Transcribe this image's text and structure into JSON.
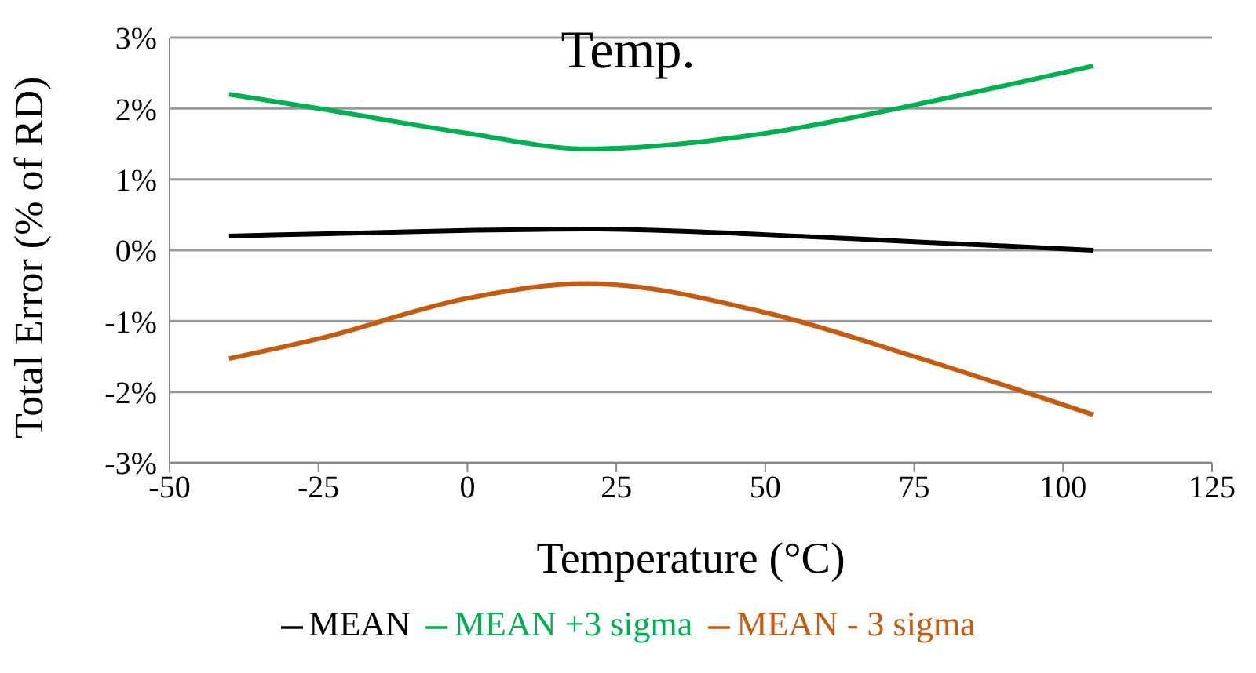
{
  "chart_data": {
    "type": "line",
    "title": "Temp.",
    "xlabel": "Temperature (°C)",
    "ylabel": "Total Error (% of RD)",
    "x": [
      -40,
      -25,
      0,
      20,
      50,
      75,
      105
    ],
    "series": [
      {
        "name": "MEAN",
        "color": "#000000",
        "values": [
          0.2,
          0.23,
          0.28,
          0.3,
          0.22,
          0.12,
          0.0
        ]
      },
      {
        "name": "MEAN - 3 sigma",
        "color": "#c55a11",
        "values": [
          -1.53,
          -1.25,
          -0.68,
          -0.47,
          -0.88,
          -1.5,
          -2.32
        ]
      },
      {
        "name": "MEAN +3 sigma",
        "color": "#00b050",
        "values": [
          2.2,
          2.0,
          1.65,
          1.43,
          1.65,
          2.05,
          2.6
        ]
      }
    ],
    "xlim": [
      -50,
      125
    ],
    "xticks": [
      -50,
      -25,
      0,
      25,
      50,
      75,
      100,
      125
    ],
    "ylim": [
      -3,
      3
    ],
    "yticks": [
      {
        "value": -3,
        "label": "-3%"
      },
      {
        "value": -2,
        "label": "-2%"
      },
      {
        "value": -1,
        "label": "-1%"
      },
      {
        "value": 0,
        "label": "0%"
      },
      {
        "value": 1,
        "label": "1%"
      },
      {
        "value": 2,
        "label": "2%"
      },
      {
        "value": 3,
        "label": "3%"
      }
    ],
    "grid": "y",
    "legend": "bottom",
    "marker": "none",
    "line_style": "solid"
  }
}
